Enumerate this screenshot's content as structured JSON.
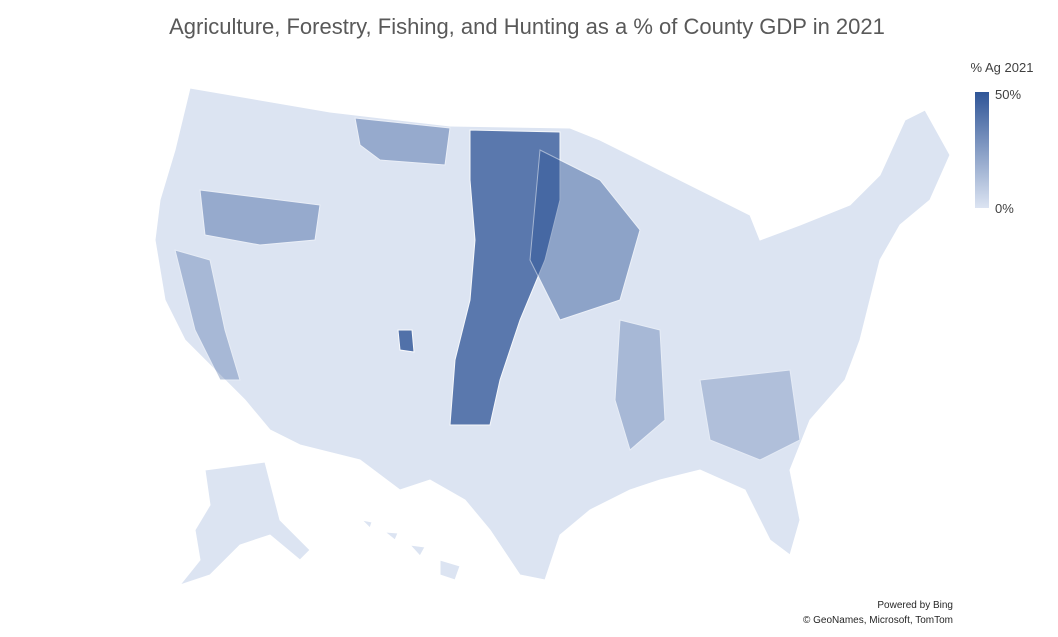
{
  "title": "Agriculture, Forestry, Fishing, and Hunting as a % of County GDP in 2021",
  "legend": {
    "title": "% Ag 2021",
    "max_label": "50%",
    "min_label": "0%",
    "low_color": "#dce4f2",
    "high_color": "#2f5597"
  },
  "attribution": {
    "line1": "Powered by Bing",
    "line2": "© GeoNames, Microsoft, TomTom"
  }
}
